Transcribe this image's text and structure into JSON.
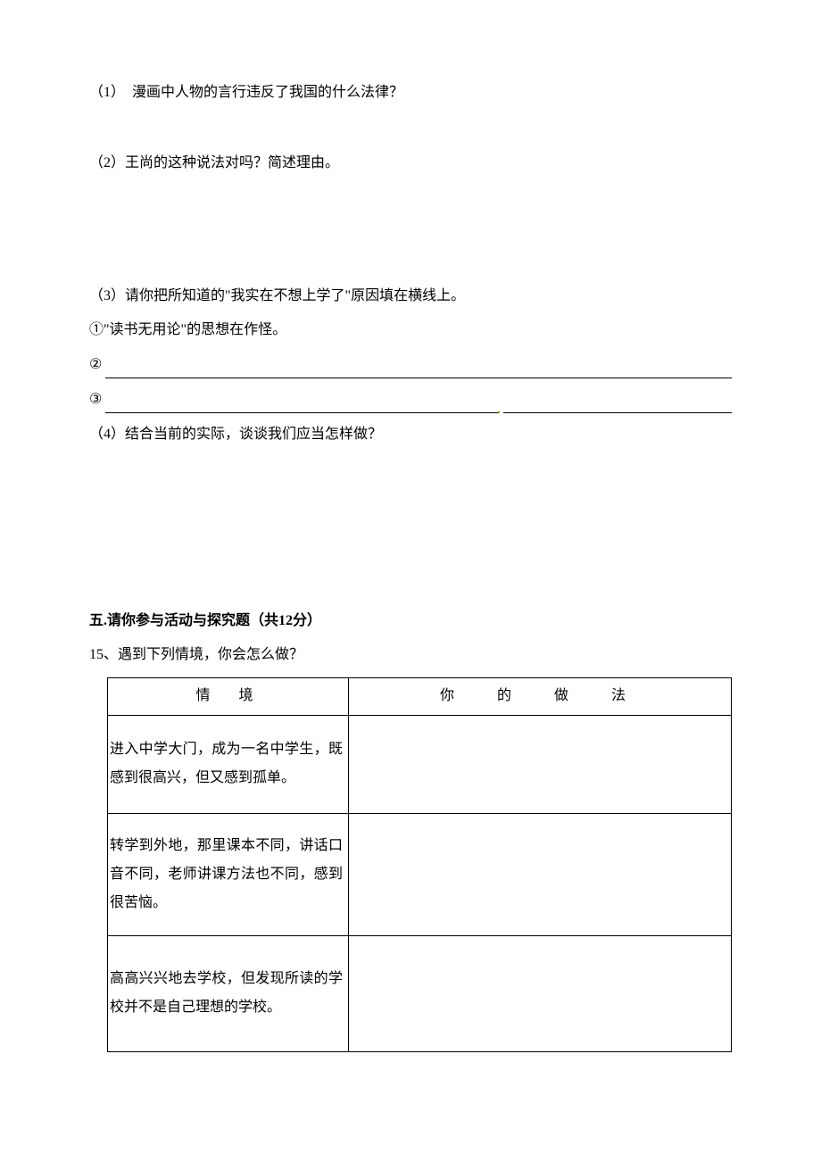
{
  "q1": "（1）　漫画中人物的言行违反了我国的什么法律？",
  "q2": "（2）王尚的这种说法对吗？简述理由。",
  "q3": "（3）请你把所知道的\"我实在不想上学了\"原因填在横线上。",
  "q3_item1": "①\"读书无用论\"的思想在作怪。",
  "q3_item2_label": "②",
  "q3_item3_label": "③",
  "q4": "（4）结合当前的实际，谈谈我们应当怎样做？",
  "section5_title": "五.请你参与活动与探究题（共12分）",
  "q15_intro": "15、遇到下列情境，你会怎么做？",
  "table": {
    "header_situation": "情　境",
    "header_action": "你　的　做　法",
    "rows": [
      {
        "situation": "进入中学大门，成为一名中学生，既感到很高兴，但又感到孤单。",
        "action": ""
      },
      {
        "situation": "转学到外地，那里课本不同，讲话口音不同，老师讲课方法也不同，感到很苦恼。",
        "action": ""
      },
      {
        "situation": "高高兴兴地去学校，但发现所读的学校并不是自己理想的学校。",
        "action": ""
      }
    ]
  }
}
